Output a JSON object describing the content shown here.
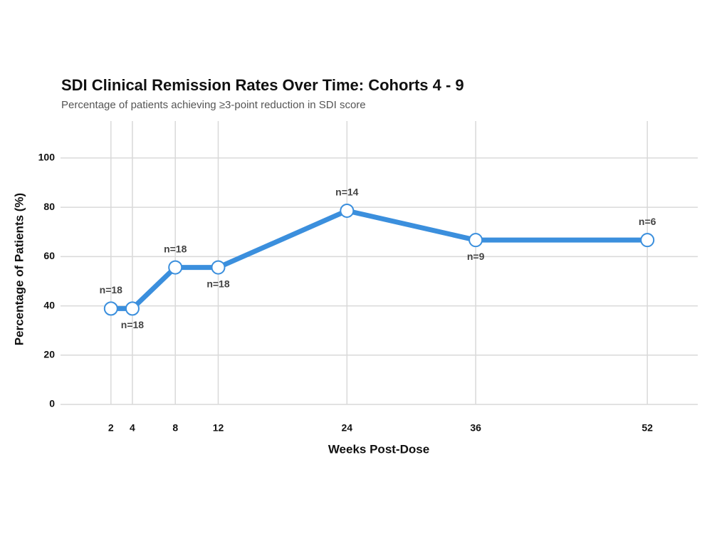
{
  "chart_data": {
    "type": "line",
    "title": "SDI Clinical Remission Rates Over Time: Cohorts 4 - 9",
    "subtitle": "Percentage of patients achieving ≥3-point reduction in SDI score",
    "xlabel": "Weeks Post-Dose",
    "ylabel": "Percentage of Patients (%)",
    "x": [
      2,
      4,
      8,
      12,
      24,
      36,
      52
    ],
    "values": [
      38.9,
      38.9,
      55.6,
      55.6,
      78.6,
      66.7,
      66.7
    ],
    "annotations": [
      "n=18",
      "n=18",
      "n=18",
      "n=18",
      "n=14",
      "n=9",
      "n=6"
    ],
    "color": "#3b8fdd",
    "xlim": [
      -2.7,
      56.7
    ],
    "xticks": [
      2,
      4,
      8,
      12,
      24,
      36,
      52
    ],
    "ylim": [
      0,
      115
    ],
    "yticks": [
      0,
      20,
      40,
      60,
      80,
      100
    ],
    "grid": true
  }
}
